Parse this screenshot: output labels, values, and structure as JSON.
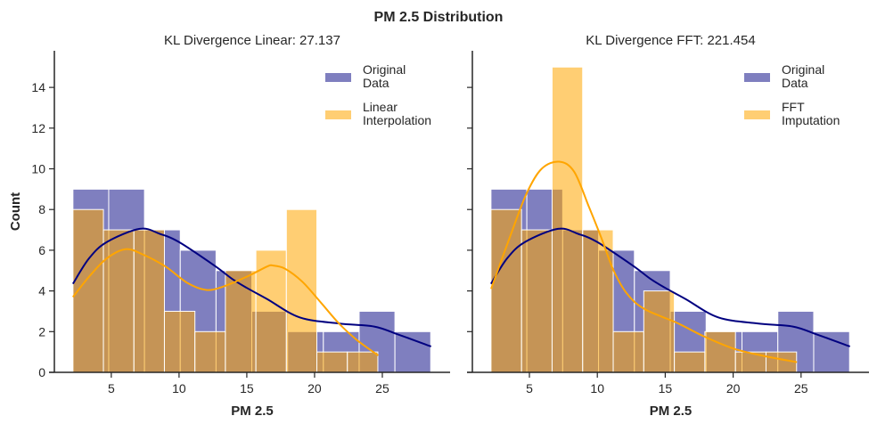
{
  "suptitle": "PM 2.5 Distribution",
  "colors": {
    "original_bar": "#000080",
    "original_kde": "#000080",
    "imputed_bar": "#FFA500",
    "imputed_kde": "#FFA500",
    "bar_edge": "#FFFFFF",
    "axis": "#262626"
  },
  "chart_data": [
    {
      "type": "bar",
      "subtype": "histogram_with_kde",
      "title": "KL Divergence Linear: 27.137",
      "xlabel": "PM 2.5",
      "ylabel": "Count",
      "xlim": [
        0.8,
        30.0
      ],
      "ylim": [
        0,
        15.8
      ],
      "xticks": [
        5,
        10,
        15,
        20,
        25
      ],
      "yticks": [
        0,
        2,
        4,
        6,
        8,
        10,
        12,
        14
      ],
      "show_ytick_labels": true,
      "grid": false,
      "legend": {
        "placement": "top-right",
        "entries": [
          [
            "Original",
            "Data"
          ],
          [
            "Linear",
            "Interpolation"
          ]
        ]
      },
      "series": [
        {
          "name": "Original Data",
          "bin_start": 2.17,
          "bin_width": 2.64,
          "counts": [
            9,
            9,
            7,
            6,
            5,
            3,
            2,
            2,
            3,
            2
          ],
          "kde": [
            [
              2.17,
              4.35
            ],
            [
              3.36,
              5.6
            ],
            [
              4.67,
              6.4
            ],
            [
              7.1,
              7.05
            ],
            [
              8.6,
              6.8
            ],
            [
              10,
              6.4
            ],
            [
              12.6,
              5.25
            ],
            [
              13.9,
              4.6
            ],
            [
              15,
              4.15
            ],
            [
              16.5,
              3.6
            ],
            [
              18.9,
              2.7
            ],
            [
              21.8,
              2.4
            ],
            [
              24.4,
              2.25
            ],
            [
              26.2,
              1.85
            ],
            [
              28.6,
              1.27
            ]
          ]
        },
        {
          "name": "Linear Interpolation",
          "bin_start": 2.17,
          "bin_width": 2.25,
          "counts": [
            8,
            7,
            7,
            3,
            2,
            5,
            6,
            8,
            1,
            1
          ],
          "kde": [
            [
              2.17,
              3.7
            ],
            [
              3.36,
              4.7
            ],
            [
              4.67,
              5.6
            ],
            [
              6.05,
              6.05
            ],
            [
              7.3,
              5.8
            ],
            [
              9.0,
              5.2
            ],
            [
              10.6,
              4.4
            ],
            [
              12.0,
              4.05
            ],
            [
              13.2,
              4.2
            ],
            [
              15,
              4.7
            ],
            [
              16.5,
              5.2
            ],
            [
              16.9,
              5.25
            ],
            [
              17.8,
              5.1
            ],
            [
              19.1,
              4.45
            ],
            [
              20.5,
              3.4
            ],
            [
              21.8,
              2.4
            ],
            [
              23.1,
              1.6
            ],
            [
              24.7,
              0.83
            ]
          ]
        }
      ]
    },
    {
      "type": "bar",
      "subtype": "histogram_with_kde",
      "title": "KL Divergence FFT: 221.454",
      "xlabel": "PM 2.5",
      "ylabel": "",
      "xlim": [
        0.8,
        30.0
      ],
      "ylim": [
        0,
        15.8
      ],
      "xticks": [
        5,
        10,
        15,
        20,
        25
      ],
      "yticks": [
        0,
        2,
        4,
        6,
        8,
        10,
        12,
        14
      ],
      "show_ytick_labels": false,
      "grid": false,
      "legend": {
        "placement": "top-right",
        "entries": [
          [
            "Original",
            "Data"
          ],
          [
            "FFT",
            "Imputation"
          ]
        ]
      },
      "series": [
        {
          "name": "Original Data",
          "bin_start": 2.17,
          "bin_width": 2.64,
          "counts": [
            9,
            9,
            7,
            6,
            5,
            3,
            2,
            2,
            3,
            2
          ],
          "kde": [
            [
              2.17,
              4.35
            ],
            [
              3.36,
              5.6
            ],
            [
              4.67,
              6.4
            ],
            [
              7.1,
              7.05
            ],
            [
              8.6,
              6.8
            ],
            [
              10,
              6.4
            ],
            [
              12.6,
              5.25
            ],
            [
              13.9,
              4.6
            ],
            [
              15,
              4.15
            ],
            [
              16.5,
              3.6
            ],
            [
              18.9,
              2.7
            ],
            [
              21.8,
              2.4
            ],
            [
              24.4,
              2.25
            ],
            [
              26.2,
              1.85
            ],
            [
              28.6,
              1.27
            ]
          ]
        },
        {
          "name": "FFT Imputation",
          "bin_start": 2.17,
          "bin_width": 2.25,
          "counts": [
            8,
            7,
            15,
            7,
            2,
            4,
            1,
            2,
            1,
            1
          ],
          "kde": [
            [
              2.18,
              4.1
            ],
            [
              3.7,
              6.9
            ],
            [
              4.8,
              8.8
            ],
            [
              5.9,
              10.0
            ],
            [
              7.2,
              10.35
            ],
            [
              8.3,
              9.85
            ],
            [
              9.4,
              8.1
            ],
            [
              10.3,
              6.6
            ],
            [
              11.2,
              5.0
            ],
            [
              12.2,
              3.85
            ],
            [
              13.5,
              3.1
            ],
            [
              15.8,
              2.45
            ],
            [
              17.9,
              1.75
            ],
            [
              20.1,
              1.15
            ],
            [
              22.3,
              0.8
            ],
            [
              24.7,
              0.5
            ]
          ]
        }
      ]
    }
  ]
}
